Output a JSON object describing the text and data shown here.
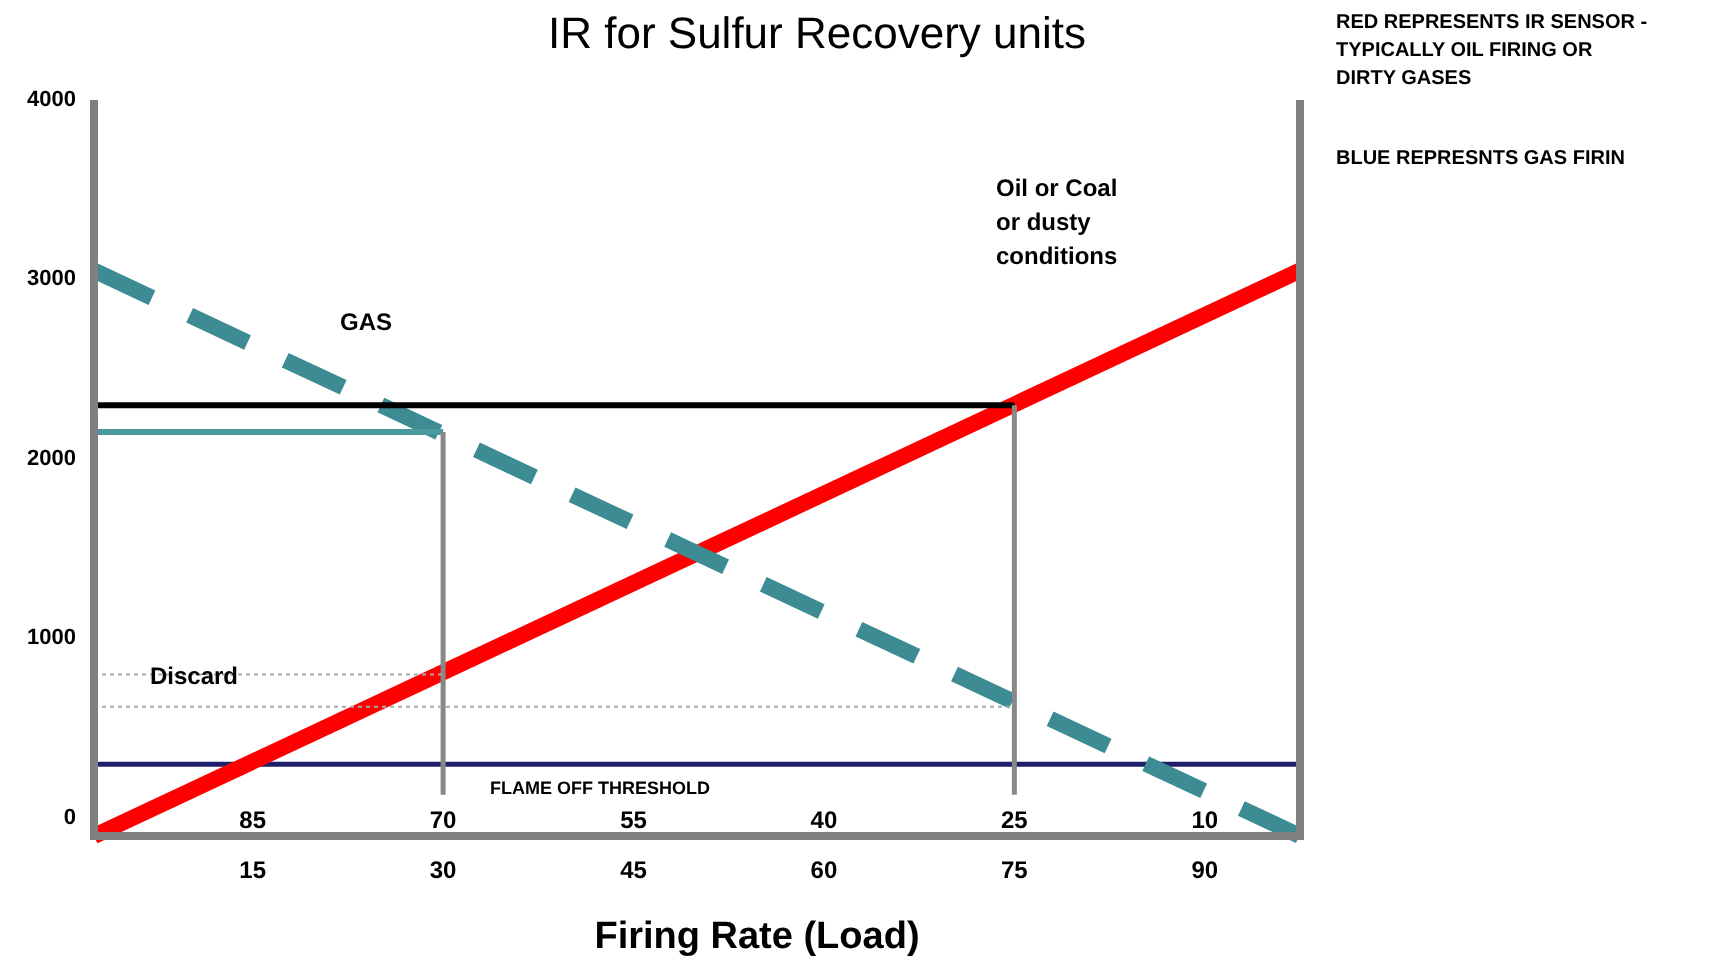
{
  "chart_data": {
    "type": "line",
    "title": "IR for Sulfur Recovery units",
    "xlabel": "Firing Rate (Load)",
    "xlim": [
      2.5,
      97.5
    ],
    "xticks": [
      15,
      30,
      45,
      60,
      75,
      90
    ],
    "x2lim": [
      97.5,
      2.5
    ],
    "x2ticks": [
      85,
      70,
      55,
      40,
      25,
      10
    ],
    "ylim": [
      -100,
      4000
    ],
    "yticks": [
      0,
      1000,
      2000,
      3000,
      4000
    ],
    "grid": false,
    "marker": "none",
    "series": [
      {
        "color": "#ff0000",
        "x": [
          2.5,
          97.5
        ],
        "values": [
          -100,
          3050
        ]
      },
      {
        "color": "#3d8b93",
        "x": [
          2.5,
          97.5
        ],
        "values": [
          3050,
          -100
        ],
        "line_style": "dashed"
      },
      {
        "color": "#000000",
        "x": [
          2.5,
          75
        ],
        "values": [
          2300,
          2300
        ]
      },
      {
        "color": "#4a9aa0",
        "x": [
          2.5,
          30
        ],
        "values": [
          2150,
          2150
        ]
      },
      {
        "color": "#888888",
        "x": [
          30,
          30
        ],
        "values": [
          2150,
          130
        ]
      },
      {
        "color": "#888888",
        "x": [
          75,
          75
        ],
        "values": [
          2300,
          130
        ]
      },
      {
        "color": "#aaaaaa",
        "x": [
          2.5,
          30
        ],
        "values": [
          800,
          800
        ],
        "line_style": "dotted"
      },
      {
        "color": "#aaaaaa",
        "x": [
          2.5,
          75
        ],
        "values": [
          620,
          620
        ],
        "line_style": "dotted"
      }
    ],
    "ref_lines": [
      {
        "axis": "y",
        "value": 300,
        "label": "FLAME OFF THRESHOLD",
        "color": "#1f1f6b"
      }
    ],
    "annotations": [
      "GAS",
      "Discard",
      "Oil or Coal or dusty conditions",
      "RED REPRESENTS IR SENSOR  - TYPICALLY OIL FIRING OR DIRTY GASES",
      "BLUE REPRESNTS GAS FIRIN"
    ]
  }
}
